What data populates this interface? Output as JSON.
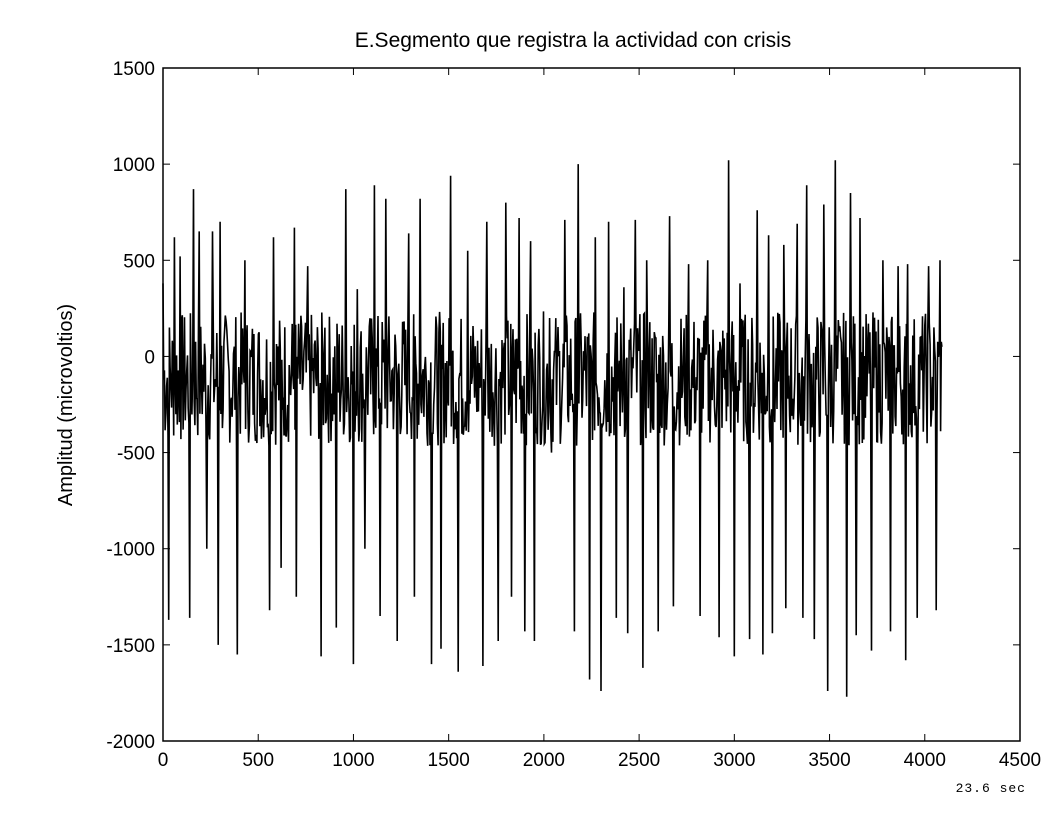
{
  "chart_data": {
    "type": "line",
    "title": "E.Segmento que registra la actividad con crisis",
    "xlabel": "",
    "ylabel": "Amplitud (microvoltios)",
    "xlim": [
      0,
      4500
    ],
    "ylim": [
      -2000,
      1500
    ],
    "x_ticks": [
      0,
      500,
      1000,
      1500,
      2000,
      2500,
      3000,
      3500,
      4000,
      4500
    ],
    "y_ticks": [
      -2000,
      -1500,
      -1000,
      -500,
      0,
      500,
      1000,
      1500
    ],
    "x_tick_labels": [
      "0",
      "500",
      "1000",
      "1500",
      "2000",
      "2500",
      "3000",
      "3500",
      "4000",
      "4500"
    ],
    "y_tick_labels": [
      "-2000",
      "-1500",
      "-1000",
      "-500",
      "0",
      "500",
      "1000",
      "1500"
    ],
    "annotation": "23.6 sec",
    "grid": false,
    "line_color": "#000000",
    "series": [
      {
        "x": [
          0,
          30,
          60,
          90,
          140,
          160,
          190,
          230,
          260,
          290,
          300,
          390,
          430,
          560,
          580,
          620,
          690,
          700,
          760,
          830,
          850,
          910,
          960,
          1000,
          1020,
          1060,
          1110,
          1140,
          1170,
          1230,
          1290,
          1320,
          1350,
          1410,
          1460,
          1510,
          1550,
          1600,
          1680,
          1700,
          1760,
          1800,
          1830,
          1870,
          1900,
          1930,
          1950,
          2030,
          2040,
          2070,
          2110,
          2160,
          2180,
          2240,
          2270,
          2300,
          2340,
          2380,
          2420,
          2440,
          2480,
          2520,
          2540,
          2600,
          2660,
          2680,
          2760,
          2820,
          2860,
          2920,
          2970,
          3000,
          3030,
          3080,
          3120,
          3150,
          3180,
          3200,
          3260,
          3270,
          3330,
          3360,
          3380,
          3420,
          3470,
          3490,
          3530,
          3590,
          3610,
          3640,
          3660,
          3720,
          3780,
          3820,
          3860,
          3900,
          3910,
          3960,
          4020,
          4060,
          4080,
          4090
        ],
        "y": [
          380,
          -1370,
          620,
          520,
          -1360,
          870,
          650,
          -1000,
          650,
          -1500,
          700,
          -1550,
          500,
          -1320,
          620,
          -1100,
          670,
          -1250,
          470,
          -1560,
          150,
          -1410,
          870,
          -1600,
          350,
          -1000,
          890,
          -1350,
          820,
          -1480,
          640,
          -1250,
          820,
          -1600,
          -1520,
          940,
          -1640,
          550,
          -1610,
          700,
          -1480,
          800,
          -1250,
          720,
          -1430,
          600,
          -1480,
          200,
          -500,
          0,
          710,
          -1430,
          1000,
          -1680,
          620,
          -1740,
          700,
          -1360,
          360,
          -1440,
          710,
          -1620,
          500,
          -1430,
          730,
          -1300,
          480,
          -1350,
          500,
          -1460,
          1020,
          -1560,
          380,
          -1470,
          760,
          -1550,
          630,
          -1440,
          580,
          -1310,
          690,
          -1360,
          890,
          -1470,
          790,
          -1740,
          1020,
          -1770,
          850,
          -1450,
          720,
          -1530,
          500,
          -1430,
          470,
          -1580,
          480,
          -1360,
          470,
          -1320,
          500,
          50
        ]
      }
    ]
  }
}
